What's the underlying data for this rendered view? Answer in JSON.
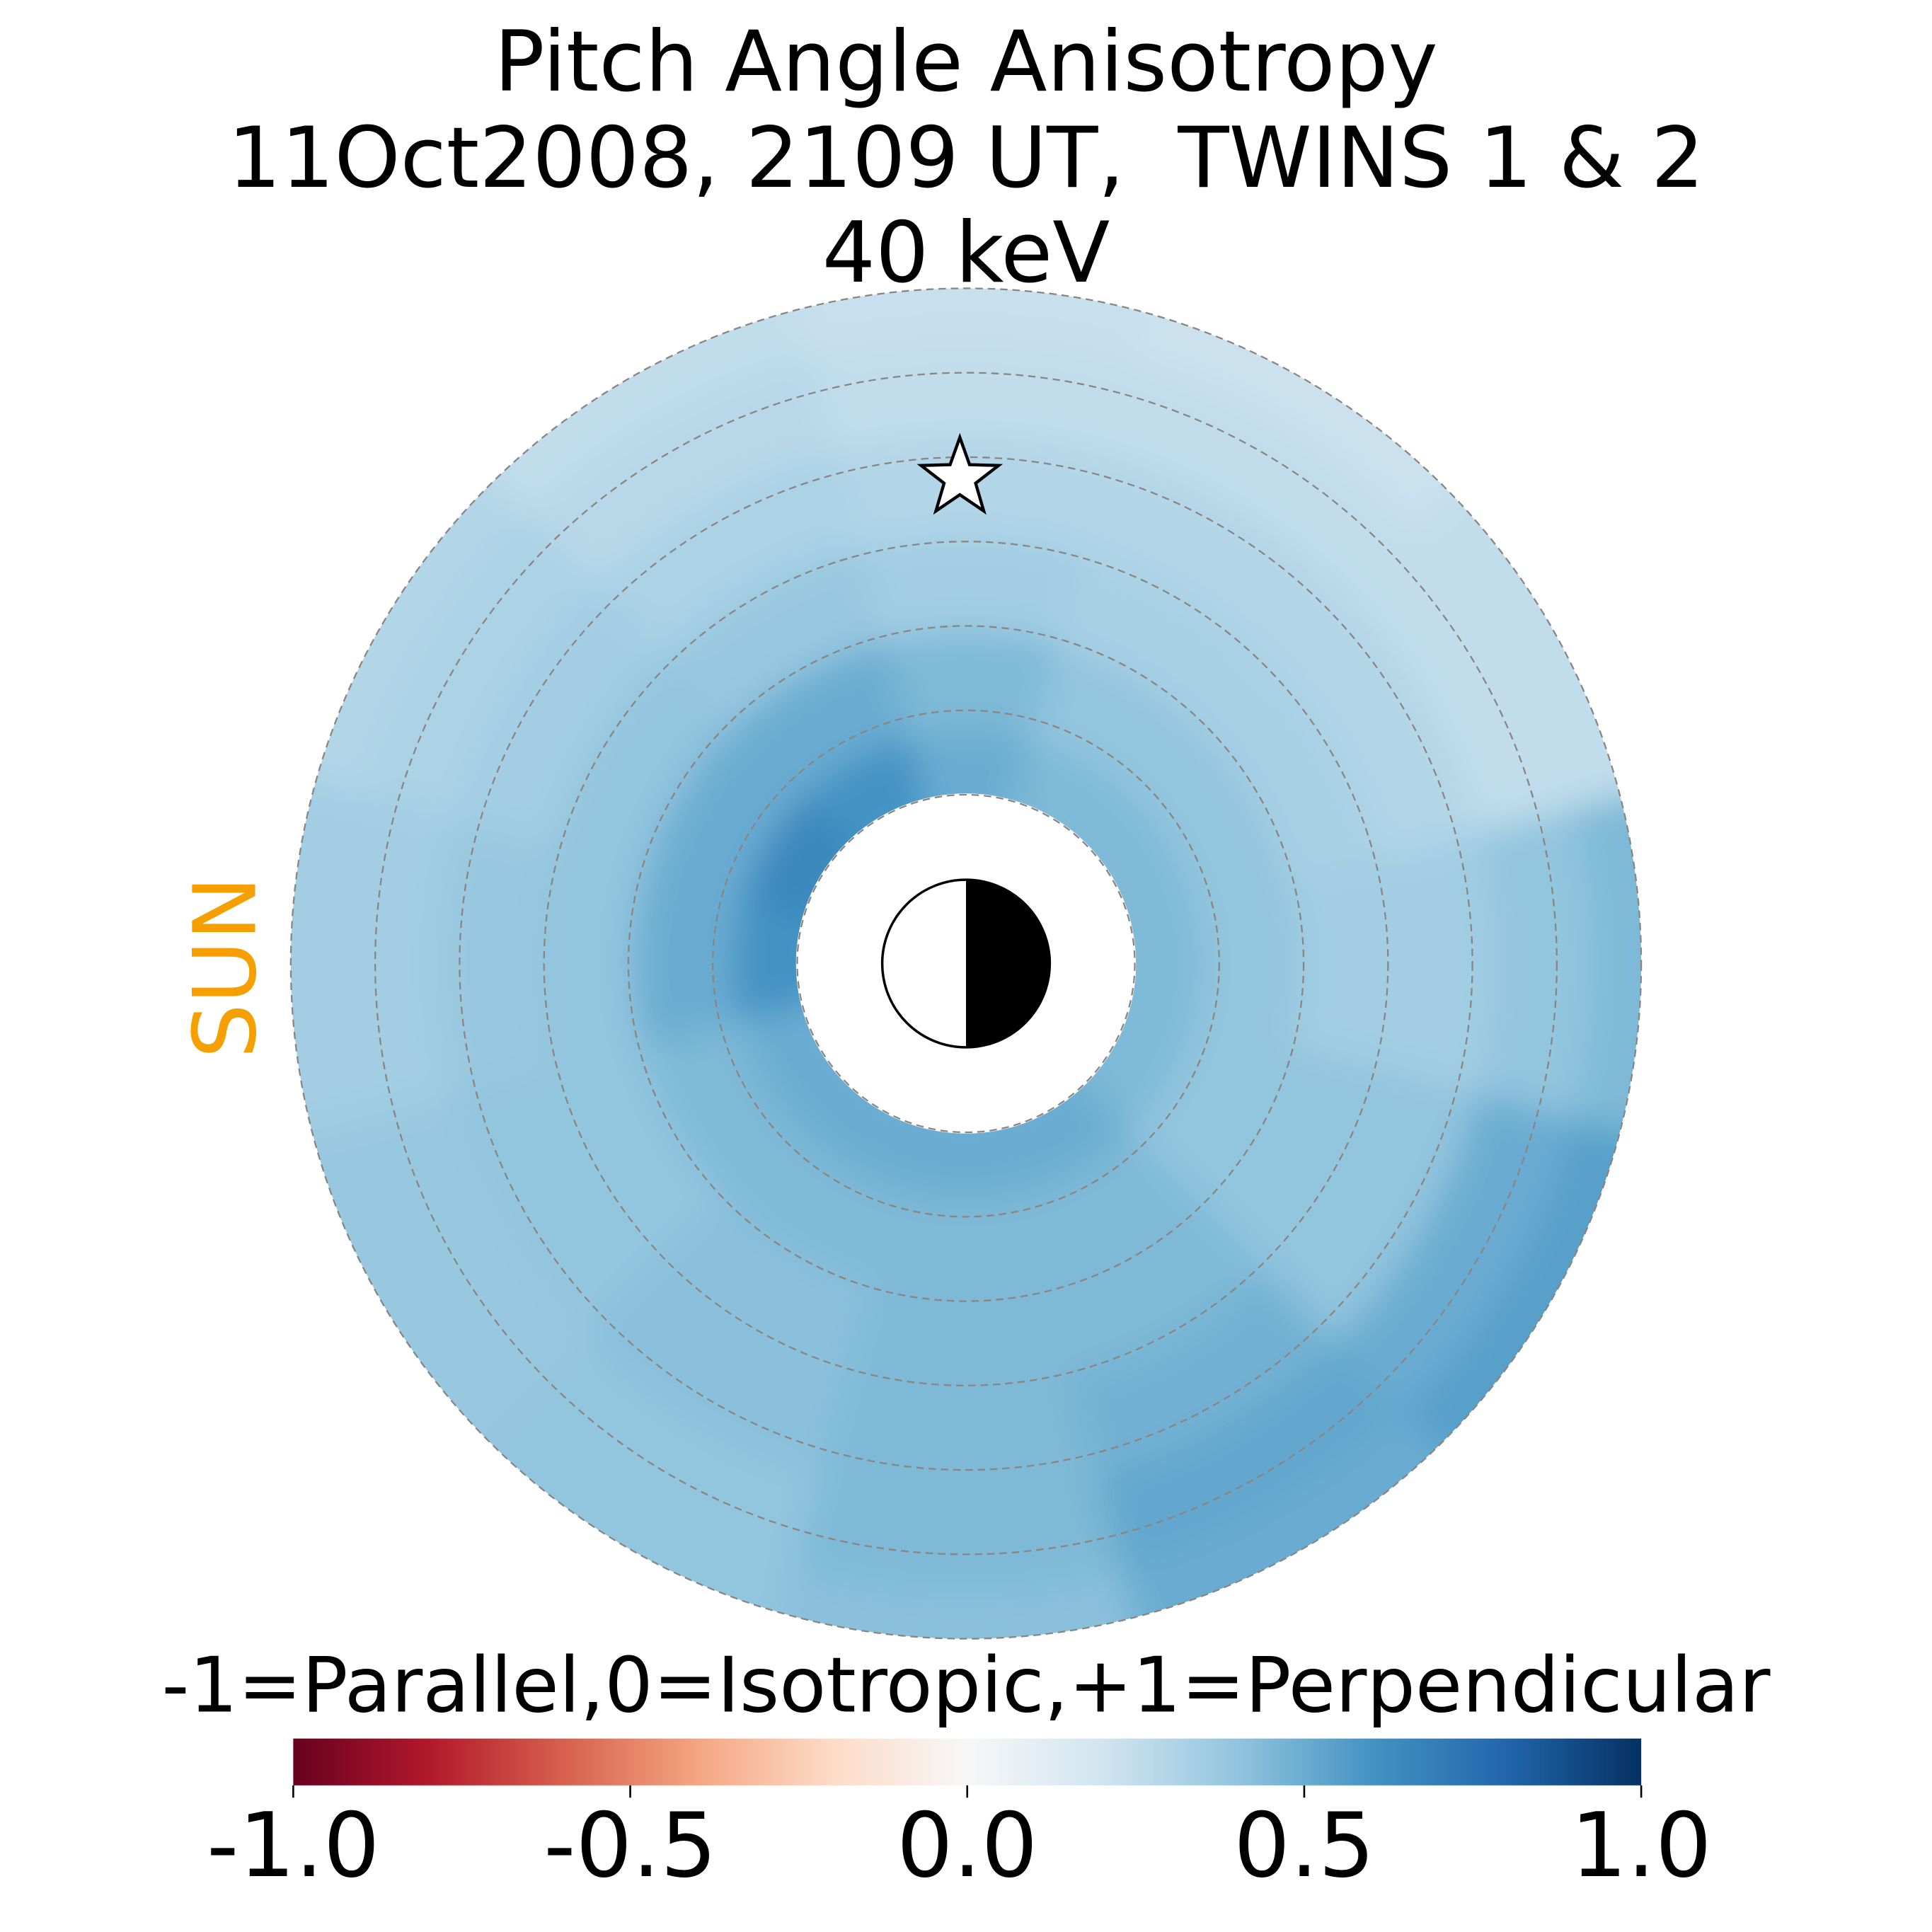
{
  "chart_data": {
    "type": "heatmap",
    "title": [
      "Pitch Angle Anisotropy",
      "11Oct2008, 2109 UT,  TWINS 1 & 2",
      "40 keV"
    ],
    "annotation": "SUN",
    "annotation_color": "#f5a000",
    "colorbar_label": "-1=Parallel,0=Isotropic,+1=Perpendicular",
    "colormap": "RdBu",
    "clim": [
      -1,
      1
    ],
    "cticks": [
      {
        "value": -1,
        "label": "-1.0"
      },
      {
        "value": -0.5,
        "label": "-0.5"
      },
      {
        "value": 0,
        "label": "0.0"
      },
      {
        "value": 0.5,
        "label": "0.5"
      },
      {
        "value": 1,
        "label": "1.0"
      }
    ],
    "values": [
      [
        0.45,
        0.45,
        0.45,
        0.5,
        0.6,
        0.65,
        0.6,
        0.5,
        0.5,
        0.5,
        0.5,
        0.45
      ],
      [
        0.4,
        0.4,
        0.4,
        0.45,
        0.5,
        0.5,
        0.5,
        0.45,
        0.45,
        0.45,
        0.45,
        0.4
      ],
      [
        0.35,
        0.33,
        0.33,
        0.35,
        0.38,
        0.4,
        0.4,
        0.4,
        0.42,
        0.45,
        0.45,
        0.4
      ],
      [
        0.35,
        0.3,
        0.3,
        0.3,
        0.32,
        0.35,
        0.38,
        0.4,
        0.42,
        0.45,
        0.48,
        0.4
      ],
      [
        0.4,
        0.25,
        0.25,
        0.25,
        0.28,
        0.32,
        0.35,
        0.38,
        0.4,
        0.45,
        0.52,
        0.5
      ],
      [
        0.45,
        0.25,
        0.22,
        0.23,
        0.25,
        0.3,
        0.35,
        0.38,
        0.4,
        0.42,
        0.5,
        0.55
      ]
    ]
  }
}
